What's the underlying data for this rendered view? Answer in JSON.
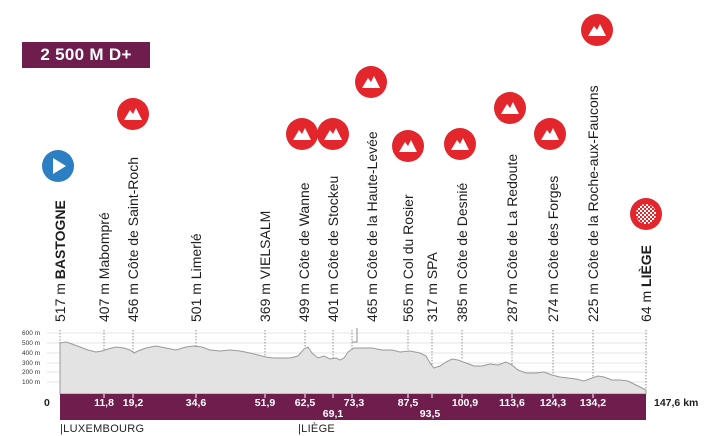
{
  "badge": {
    "label": "2 500 M D+"
  },
  "start_zero": "0",
  "total_km": "147,6 km",
  "regions": [
    "|LUXEMBOURG",
    "|LIÈGE"
  ],
  "altitude_ticks": [
    "600 m",
    "500 m",
    "400 m",
    "300 m",
    "200 m",
    "100 m"
  ],
  "colors": {
    "brand": "#6e1d4d",
    "climb": "#e2262c",
    "start": "#2d7fc4",
    "profile_fill": "#e3e3e3"
  },
  "points": [
    {
      "alt": "517 m",
      "name": "BASTOGNE",
      "bold": true,
      "km": "",
      "icon": "start-flag-icon"
    },
    {
      "alt": "407 m",
      "name": "Mabompré",
      "bold": false,
      "km": "11,8",
      "icon": ""
    },
    {
      "alt": "456 m",
      "name": "Côte de Saint-Roch",
      "bold": false,
      "km": "19,2",
      "icon": "climb-icon"
    },
    {
      "alt": "501 m",
      "name": "Limerlé",
      "bold": false,
      "km": "34,6",
      "icon": ""
    },
    {
      "alt": "369 m",
      "name": "VIELSALM",
      "bold": false,
      "km": "51,9",
      "icon": ""
    },
    {
      "alt": "499 m",
      "name": "Côte de Wanne",
      "bold": false,
      "km": "62,5",
      "icon": "climb-icon"
    },
    {
      "alt": "401 m",
      "name": "Côte de Stockeu",
      "bold": false,
      "km": "69,1",
      "icon": "climb-icon"
    },
    {
      "alt": "465 m",
      "name": "Côte de la Haute-Levée",
      "bold": false,
      "km": "73,3",
      "icon": "climb-icon"
    },
    {
      "alt": "565 m",
      "name": "Col du Rosier",
      "bold": false,
      "km": "87,5",
      "icon": "climb-icon"
    },
    {
      "alt": "317 m",
      "name": "SPA",
      "bold": false,
      "km": "93,5",
      "icon": ""
    },
    {
      "alt": "385 m",
      "name": "Côte de Desnié",
      "bold": false,
      "km": "100,9",
      "icon": "climb-icon"
    },
    {
      "alt": "287 m",
      "name": "Côte de La Redoute",
      "bold": false,
      "km": "113,6",
      "icon": "climb-icon"
    },
    {
      "alt": "274 m",
      "name": "Côte des Forges",
      "bold": false,
      "km": "124,3",
      "icon": "climb-icon"
    },
    {
      "alt": "225 m",
      "name": "Côte de la Roche-aux-Faucons",
      "bold": false,
      "km": "134,2",
      "icon": "climb-icon"
    },
    {
      "alt": "64 m",
      "name": "LIÈGE",
      "bold": true,
      "km": "",
      "icon": "finish-flag-icon"
    }
  ]
}
